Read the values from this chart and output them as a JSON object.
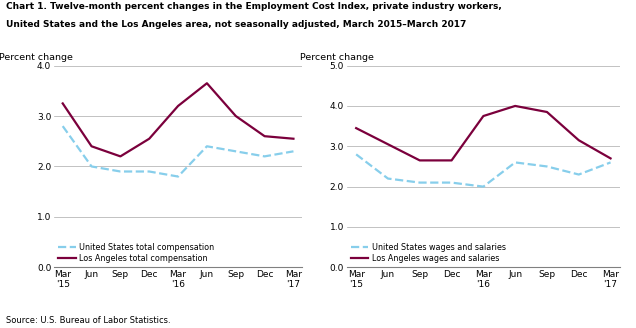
{
  "title_line1": "Chart 1. Twelve-month percent changes in the Employment Cost Index, private industry workers,",
  "title_line2": "United States and the Los Angeles area, not seasonally adjusted, March 2015–March 2017",
  "source": "Source: U.S. Bureau of Labor Statistics.",
  "x_labels": [
    "Mar\n'15",
    "Jun",
    "Sep",
    "Dec",
    "Mar\n'16",
    "Jun",
    "Sep",
    "Dec",
    "Mar\n'17"
  ],
  "left_ylabel": "Percent change",
  "left_ylim": [
    0.0,
    4.0
  ],
  "left_yticks": [
    0.0,
    1.0,
    2.0,
    3.0,
    4.0
  ],
  "left_us_total": [
    2.8,
    2.0,
    1.9,
    1.9,
    1.8,
    2.4,
    2.3,
    2.2,
    2.3
  ],
  "left_la_total": [
    3.25,
    2.4,
    2.2,
    2.55,
    3.2,
    3.65,
    3.0,
    2.6,
    2.55
  ],
  "right_ylabel": "Percent change",
  "right_ylim": [
    0.0,
    5.0
  ],
  "right_yticks": [
    0.0,
    1.0,
    2.0,
    3.0,
    4.0,
    5.0
  ],
  "right_us_wages": [
    2.8,
    2.2,
    2.1,
    2.1,
    2.0,
    2.6,
    2.5,
    2.3,
    2.6
  ],
  "right_la_wages": [
    3.45,
    3.05,
    2.65,
    2.65,
    3.75,
    4.0,
    3.85,
    3.15,
    2.7
  ],
  "us_color": "#87CEEB",
  "la_color": "#7B003C",
  "us_linestyle": "--",
  "la_linestyle": "-",
  "linewidth": 1.6,
  "left_legend1": "United States total compensation",
  "left_legend2": "Los Angeles total compensation",
  "right_legend1": "United States wages and salaries",
  "right_legend2": "Los Angeles wages and salaries",
  "grid_color": "#aaaaaa",
  "bg_color": "#ffffff"
}
